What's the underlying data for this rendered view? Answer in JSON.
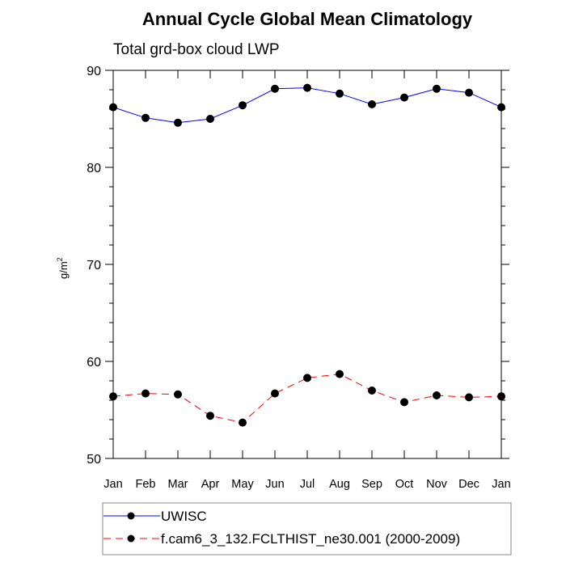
{
  "chart_data": {
    "type": "line",
    "title": "Annual Cycle Global Mean Climatology",
    "subtitle": "Total grd-box cloud LWP",
    "xlabel": "",
    "ylabel": "g/m",
    "ylabel_superscript": "2",
    "categories": [
      "Jan",
      "Feb",
      "Mar",
      "Apr",
      "May",
      "Jun",
      "Jul",
      "Aug",
      "Sep",
      "Oct",
      "Nov",
      "Dec",
      "Jan"
    ],
    "ylim": [
      50,
      90
    ],
    "yticks": [
      50,
      60,
      70,
      80,
      90
    ],
    "ytick_labels": [
      "50",
      "60",
      "70",
      "80",
      "90"
    ],
    "yminor_step": 2,
    "grid": false,
    "legend_position": "bottom",
    "series": [
      {
        "name": "UWISC",
        "color": "#0000ff",
        "dash": "solid",
        "marker_color": "#000000",
        "values": [
          86.2,
          85.1,
          84.6,
          85.0,
          86.4,
          88.1,
          88.2,
          87.6,
          86.5,
          87.2,
          88.1,
          87.7,
          86.2
        ]
      },
      {
        "name": "f.cam6_3_132.FCLTHIST_ne30.001 (2000-2009)",
        "color": "#ff0000",
        "dash": "dashed",
        "marker_color": "#000000",
        "values": [
          56.4,
          56.7,
          56.6,
          54.4,
          53.7,
          56.7,
          58.3,
          58.7,
          57.0,
          55.8,
          56.5,
          56.3,
          56.4
        ]
      }
    ]
  }
}
